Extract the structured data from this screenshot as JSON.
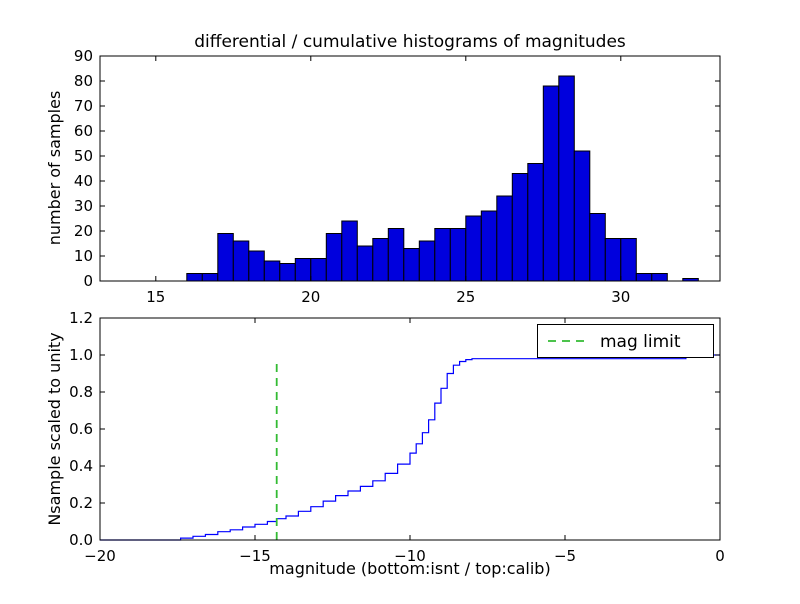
{
  "figure": {
    "background": "#ffffff"
  },
  "chart_data": [
    {
      "type": "bar",
      "subplot": "top",
      "title": "differential / cumulative histograms of magnitudes",
      "xlabel": "",
      "ylabel": "number of samples",
      "bar_color": "#0000dd",
      "bar_edge_color": "#000000",
      "bin_start": 16.0,
      "bin_width": 0.5,
      "values": [
        3,
        3,
        19,
        16,
        12,
        8,
        7,
        9,
        9,
        19,
        24,
        14,
        17,
        21,
        13,
        16,
        21,
        21,
        26,
        28,
        34,
        43,
        47,
        78,
        82,
        52,
        27,
        17,
        17,
        3,
        3,
        0,
        1
      ],
      "xlim": [
        13.2,
        33.2
      ],
      "ylim": [
        0,
        90
      ],
      "xticks": [
        15,
        20,
        25,
        30
      ],
      "xtick_labels": [
        "15",
        "20",
        "25",
        "30"
      ],
      "yticks": [
        0,
        10,
        20,
        30,
        40,
        50,
        60,
        70,
        80,
        90
      ],
      "ytick_labels": [
        "0",
        "10",
        "20",
        "30",
        "40",
        "50",
        "60",
        "70",
        "80",
        "90"
      ],
      "grid": false
    },
    {
      "type": "line",
      "subplot": "bottom",
      "title": "",
      "xlabel": "magnitude (bottom:isnt / top:calib)",
      "ylabel": "Nsample scaled to unity",
      "line_color": "#0000ff",
      "step": true,
      "x": [
        -20,
        -17.6,
        -17.4,
        -17.0,
        -16.6,
        -16.2,
        -15.8,
        -15.4,
        -15.0,
        -14.6,
        -14.3,
        -14.0,
        -13.6,
        -13.2,
        -12.8,
        -12.4,
        -12.0,
        -11.6,
        -11.2,
        -10.8,
        -10.4,
        -10.0,
        -9.8,
        -9.6,
        -9.4,
        -9.2,
        -9.0,
        -8.8,
        -8.6,
        -8.4,
        -8.2,
        -8.0,
        -1.2,
        -1.1,
        0
      ],
      "y": [
        0,
        0,
        0.01,
        0.02,
        0.03,
        0.045,
        0.055,
        0.07,
        0.085,
        0.1,
        0.115,
        0.13,
        0.155,
        0.18,
        0.21,
        0.24,
        0.265,
        0.29,
        0.32,
        0.36,
        0.41,
        0.47,
        0.52,
        0.58,
        0.65,
        0.74,
        0.82,
        0.9,
        0.945,
        0.965,
        0.975,
        0.98,
        0.98,
        1.0,
        1.0
      ],
      "xlim": [
        -20,
        0
      ],
      "ylim": [
        0,
        1.2
      ],
      "xticks": [
        -20,
        -15,
        -10,
        -5,
        0
      ],
      "xtick_labels": [
        "−20",
        "−15",
        "−10",
        "−5",
        "0"
      ],
      "yticks": [
        0,
        0.2,
        0.4,
        0.6,
        0.8,
        1.0,
        1.2
      ],
      "ytick_labels": [
        "0.0",
        "0.2",
        "0.4",
        "0.6",
        "0.8",
        "1.0",
        "1.2"
      ],
      "mag_limit_line": {
        "x": -14.3,
        "y0": 0,
        "y1": 0.97,
        "color": "#33bb33",
        "style": "dashed"
      },
      "legend": {
        "label": "mag limit",
        "position": "upper right"
      },
      "grid": false
    }
  ]
}
